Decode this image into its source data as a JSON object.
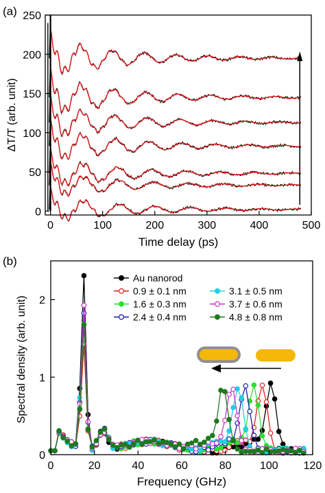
{
  "chart_data": [
    {
      "panel": "(a)",
      "type": "line",
      "xlabel": "Time delay (ps)",
      "ylabel": "ΔT/T (arb. unit)",
      "xlim": [
        -10,
        500
      ],
      "ylim": [
        -5,
        250
      ],
      "xticks": [
        0,
        100,
        200,
        300,
        400,
        500
      ],
      "yticks": [
        0,
        50,
        100,
        150,
        200,
        250
      ],
      "colors": {
        "data": "#000000",
        "fit": "#dd2222"
      },
      "arrow": {
        "x": 478,
        "y_from": 8,
        "y_to": 200
      },
      "series": [
        {
          "offset": 2,
          "period_ps": 68,
          "amplitude": 16,
          "tau_ps": 150
        },
        {
          "offset": 33,
          "period_ps": 67,
          "amplitude": 16,
          "tau_ps": 145
        },
        {
          "offset": 48,
          "period_ps": 66,
          "amplitude": 18,
          "tau_ps": 150
        },
        {
          "offset": 83,
          "period_ps": 64,
          "amplitude": 20,
          "tau_ps": 150
        },
        {
          "offset": 113,
          "period_ps": 63,
          "amplitude": 20,
          "tau_ps": 150
        },
        {
          "offset": 145,
          "period_ps": 62,
          "amplitude": 22,
          "tau_ps": 150
        },
        {
          "offset": 195,
          "period_ps": 61,
          "amplitude": 22,
          "tau_ps": 150
        }
      ]
    },
    {
      "panel": "(b)",
      "type": "line",
      "xlabel": "Frequency (GHz)",
      "ylabel": "Spectral density (arb. unit)",
      "xlim": [
        0,
        120
      ],
      "ylim": [
        0,
        2.5
      ],
      "xticks": [
        0,
        20,
        40,
        60,
        80,
        100,
        120
      ],
      "yticks": [
        0,
        1,
        2
      ],
      "legend": "top-right",
      "series": [
        {
          "name": "Au nanorod",
          "color": "#000000",
          "filled": true,
          "peak1": [
            15,
            2.4
          ],
          "peak2": [
            101,
            1.0
          ]
        },
        {
          "name": "0.9 ± 0.1 nm",
          "color": "#e01f1f",
          "filled": false,
          "peak1": [
            15,
            1.45
          ],
          "peak2": [
            97,
            1.0
          ]
        },
        {
          "name": "1.6 ± 0.3 nm",
          "color": "#33dd33",
          "filled": true,
          "peak1": [
            15,
            1.7
          ],
          "peak2": [
            93,
            1.0
          ]
        },
        {
          "name": "2.4 ± 0.4 nm",
          "color": "#1a1ab0",
          "filled": false,
          "peak1": [
            15,
            1.85
          ],
          "peak2": [
            89,
            1.0
          ]
        },
        {
          "name": "3.1 ± 0.5 nm",
          "color": "#22d0e6",
          "filled": true,
          "peak1": [
            15,
            2.0
          ],
          "peak2": [
            86,
            1.0
          ]
        },
        {
          "name": "3.7 ± 0.6 nm",
          "color": "#cc33cc",
          "filled": false,
          "peak1": [
            15,
            1.95
          ],
          "peak2": [
            83,
            1.0
          ]
        },
        {
          "name": "4.8 ± 0.8 nm",
          "color": "#1e7a1e",
          "filled": true,
          "peak1": [
            15,
            1.7
          ],
          "peak2": [
            79,
            1.0
          ]
        }
      ],
      "inset": {
        "rod_color": "#f5b80a",
        "shell_color": "#909090"
      }
    }
  ]
}
